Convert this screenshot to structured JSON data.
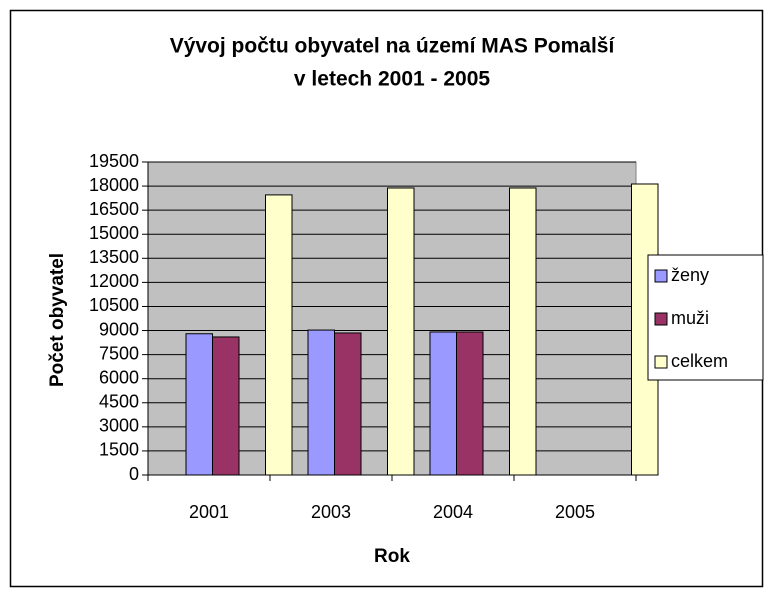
{
  "chart_data": {
    "type": "bar",
    "title": [
      "Vývoj počtu obyvatel na území MAS Pomalší",
      "v letech 2001 - 2005"
    ],
    "x_label": "Rok",
    "y_label": "Počet obyvatel",
    "categories": [
      "2001",
      "2003",
      "2004",
      "2005"
    ],
    "series": [
      {
        "name": "ženy",
        "color": "#9999ff",
        "values": [
          8800,
          9030,
          8910,
          null
        ]
      },
      {
        "name": "muži",
        "color": "#993366",
        "values": [
          8600,
          8850,
          8910,
          null
        ]
      },
      {
        "name": "celkem",
        "color": "#ffffcc",
        "values": [
          17450,
          17880,
          17880,
          18130
        ]
      }
    ],
    "ylim": [
      0,
      19500
    ],
    "yticks": [
      0,
      1500,
      3000,
      4500,
      6000,
      7500,
      9000,
      10500,
      12000,
      13500,
      15000,
      16500,
      18000,
      19500
    ],
    "grid": true,
    "legend": "right"
  }
}
